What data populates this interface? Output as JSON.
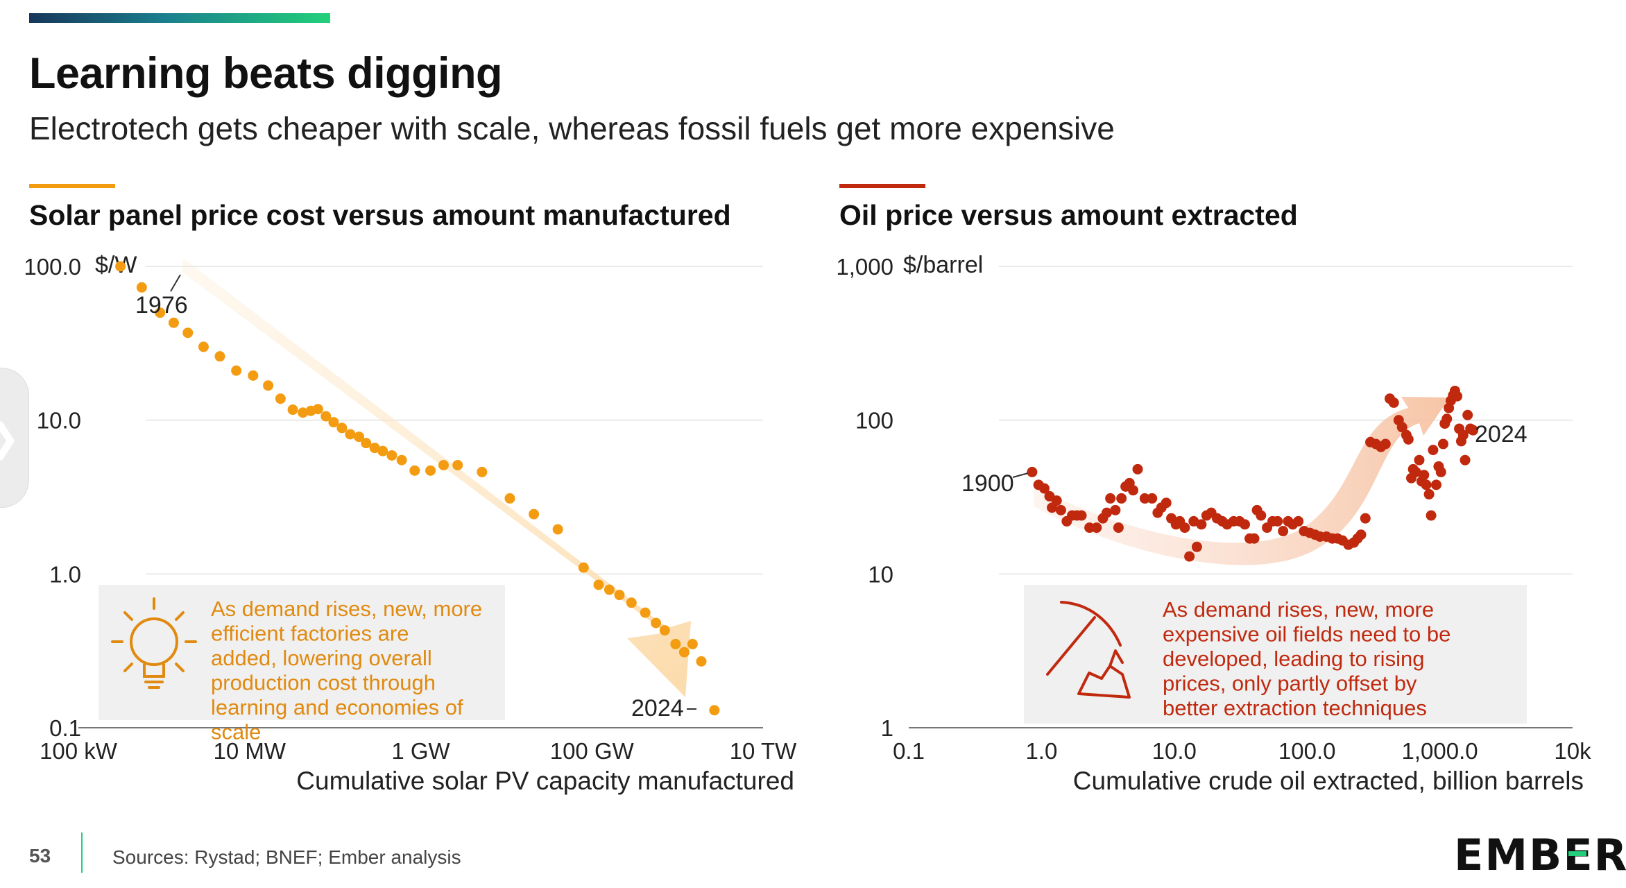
{
  "header": {
    "title": "Learning beats digging",
    "subtitle": "Electrotech gets cheaper with scale, whereas fossil fuels get more expensive"
  },
  "footer": {
    "page_number": "53",
    "sources": "Sources: Rystad; BNEF; Ember analysis",
    "logo": "EMBER"
  },
  "colors": {
    "solar": "#f39c12",
    "oil": "#c0290e",
    "grid": "#e2e2e2",
    "text": "#111111"
  },
  "icons": {
    "solar_callout": "lightbulb-icon",
    "oil_callout": "pickaxe-icon"
  },
  "chart_data": [
    {
      "type": "scatter",
      "title": "Solar panel price cost versus amount manufactured",
      "xlabel": "Cumulative solar PV capacity manufactured",
      "ylabel": "$/W",
      "x_scale": "log",
      "y_scale": "log",
      "x_unit": "kW",
      "xlim": [
        100,
        10000000000
      ],
      "ylim": [
        0.1,
        100
      ],
      "x_ticks": [
        100,
        10000,
        1000000,
        100000000,
        10000000000
      ],
      "x_tick_labels": [
        "100 kW",
        "10 MW",
        "1 GW",
        "100 GW",
        "10 TW"
      ],
      "y_ticks": [
        0.1,
        1,
        10,
        100
      ],
      "y_tick_labels": [
        "0.1",
        "1.0",
        "10.0",
        "100.0"
      ],
      "grid": true,
      "annotations": [
        {
          "label": "1976",
          "x": 310,
          "y": 100
        },
        {
          "label": "2024",
          "x": 2700000000,
          "y": 0.13
        }
      ],
      "callout": "As demand rises, new, more efficient factories are added, lowering overall production cost through learning and economies of scale",
      "points": [
        [
          310,
          100
        ],
        [
          550,
          73
        ],
        [
          900,
          50
        ],
        [
          1300,
          43
        ],
        [
          1900,
          37
        ],
        [
          2900,
          30
        ],
        [
          4500,
          26
        ],
        [
          7000,
          21
        ],
        [
          11000,
          19.5
        ],
        [
          16500,
          16.8
        ],
        [
          23000,
          13.8
        ],
        [
          32000,
          11.7
        ],
        [
          42000,
          11.2
        ],
        [
          52000,
          11.5
        ],
        [
          63000,
          11.8
        ],
        [
          78000,
          10.6
        ],
        [
          96000,
          9.7
        ],
        [
          120000,
          8.9
        ],
        [
          150000,
          8.1
        ],
        [
          190000,
          7.8
        ],
        [
          230000,
          7.1
        ],
        [
          290000,
          6.6
        ],
        [
          360000,
          6.3
        ],
        [
          460000,
          5.9
        ],
        [
          600000,
          5.5
        ],
        [
          850000,
          4.7
        ],
        [
          1300000,
          4.7
        ],
        [
          1850000,
          5.1
        ],
        [
          2700000,
          5.1
        ],
        [
          5200000,
          4.6
        ],
        [
          11000000,
          3.1
        ],
        [
          21000000,
          2.45
        ],
        [
          40000000,
          1.95
        ],
        [
          80000000,
          1.1
        ],
        [
          120000000,
          0.85
        ],
        [
          160000000,
          0.79
        ],
        [
          210000000,
          0.73
        ],
        [
          290000000,
          0.65
        ],
        [
          420000000,
          0.56
        ],
        [
          560000000,
          0.48
        ],
        [
          710000000,
          0.43
        ],
        [
          950000000,
          0.35
        ],
        [
          1200000000,
          0.31
        ],
        [
          1500000000,
          0.35
        ],
        [
          1900000000,
          0.27
        ],
        [
          2700000000,
          0.13
        ]
      ]
    },
    {
      "type": "scatter",
      "title": "Oil price versus amount extracted",
      "xlabel": "Cumulative crude oil extracted, billion barrels",
      "ylabel": "$/barrel",
      "x_scale": "log",
      "y_scale": "log",
      "xlim": [
        0.1,
        10000
      ],
      "ylim": [
        1,
        1000
      ],
      "x_ticks": [
        0.1,
        1,
        10,
        100,
        1000,
        10000
      ],
      "x_tick_labels": [
        "0.1",
        "1.0",
        "10.0",
        "100.0",
        "1,000.0",
        "10k"
      ],
      "y_ticks": [
        1,
        10,
        100,
        1000
      ],
      "y_tick_labels": [
        "1",
        "10",
        "100",
        "1,000"
      ],
      "grid": true,
      "annotations": [
        {
          "label": "1900",
          "x": 0.85,
          "y": 46
        },
        {
          "label": "2024",
          "x": 1850,
          "y": 83
        }
      ],
      "callout": "As demand rises, new, more expensive oil fields need to be developed, leading to rising prices, only partly offset by better extraction techniques",
      "points": [
        [
          0.85,
          46
        ],
        [
          0.95,
          38
        ],
        [
          1.05,
          36
        ],
        [
          1.15,
          32
        ],
        [
          1.2,
          27
        ],
        [
          1.3,
          30
        ],
        [
          1.4,
          26
        ],
        [
          1.55,
          22
        ],
        [
          1.7,
          24
        ],
        [
          1.85,
          24
        ],
        [
          2.0,
          24
        ],
        [
          2.3,
          20
        ],
        [
          2.6,
          20
        ],
        [
          2.9,
          23
        ],
        [
          3.1,
          25
        ],
        [
          3.3,
          31
        ],
        [
          3.6,
          26
        ],
        [
          3.8,
          20
        ],
        [
          4.0,
          31
        ],
        [
          4.3,
          37
        ],
        [
          4.6,
          39
        ],
        [
          4.9,
          35
        ],
        [
          5.3,
          48
        ],
        [
          6.0,
          31
        ],
        [
          6.8,
          31
        ],
        [
          7.5,
          25
        ],
        [
          8.0,
          27
        ],
        [
          8.7,
          29
        ],
        [
          9.5,
          23
        ],
        [
          10.3,
          21
        ],
        [
          11.0,
          22
        ],
        [
          12.0,
          20
        ],
        [
          13.0,
          13
        ],
        [
          14.0,
          22
        ],
        [
          14.8,
          15
        ],
        [
          16.0,
          21
        ],
        [
          17.5,
          24
        ],
        [
          19.0,
          25
        ],
        [
          21.0,
          23
        ],
        [
          23.0,
          22
        ],
        [
          25.0,
          21
        ],
        [
          28.0,
          22
        ],
        [
          31.0,
          22
        ],
        [
          34.0,
          21
        ],
        [
          37.0,
          17
        ],
        [
          40.0,
          17
        ],
        [
          42.0,
          26
        ],
        [
          45.0,
          24
        ],
        [
          50.0,
          20
        ],
        [
          55.0,
          22
        ],
        [
          60.0,
          22
        ],
        [
          66.0,
          19
        ],
        [
          72.0,
          22
        ],
        [
          78.0,
          21
        ],
        [
          86.0,
          22
        ],
        [
          95.0,
          19
        ],
        [
          105.0,
          18.5
        ],
        [
          115.0,
          18
        ],
        [
          125.0,
          17.5
        ],
        [
          140.0,
          17.5
        ],
        [
          155.0,
          17
        ],
        [
          170.0,
          17
        ],
        [
          185.0,
          16.5
        ],
        [
          205.0,
          15.5
        ],
        [
          225.0,
          16
        ],
        [
          240.0,
          17
        ],
        [
          255.0,
          18
        ],
        [
          275.0,
          23
        ],
        [
          300.0,
          72
        ],
        [
          330.0,
          70
        ],
        [
          360.0,
          67
        ],
        [
          390.0,
          70
        ],
        [
          420.0,
          138
        ],
        [
          450.0,
          130
        ],
        [
          490.0,
          100
        ],
        [
          520.0,
          90
        ],
        [
          560.0,
          80
        ],
        [
          580.0,
          75
        ],
        [
          610.0,
          42
        ],
        [
          630.0,
          48
        ],
        [
          660.0,
          46
        ],
        [
          700.0,
          55
        ],
        [
          730.0,
          40
        ],
        [
          760.0,
          44
        ],
        [
          790.0,
          38
        ],
        [
          830.0,
          33
        ],
        [
          860.0,
          24
        ],
        [
          890.0,
          64
        ],
        [
          940.0,
          38
        ],
        [
          980.0,
          50
        ],
        [
          1020.0,
          46
        ],
        [
          1060.0,
          70
        ],
        [
          1090.0,
          95
        ],
        [
          1130.0,
          102
        ],
        [
          1170.0,
          120
        ],
        [
          1210.0,
          134
        ],
        [
          1260.0,
          145
        ],
        [
          1300.0,
          155
        ],
        [
          1350.0,
          143
        ],
        [
          1400.0,
          88
        ],
        [
          1450.0,
          73
        ],
        [
          1500.0,
          80
        ],
        [
          1550.0,
          55
        ],
        [
          1620.0,
          108
        ],
        [
          1700.0,
          88
        ],
        [
          1780.0,
          86
        ]
      ]
    }
  ]
}
